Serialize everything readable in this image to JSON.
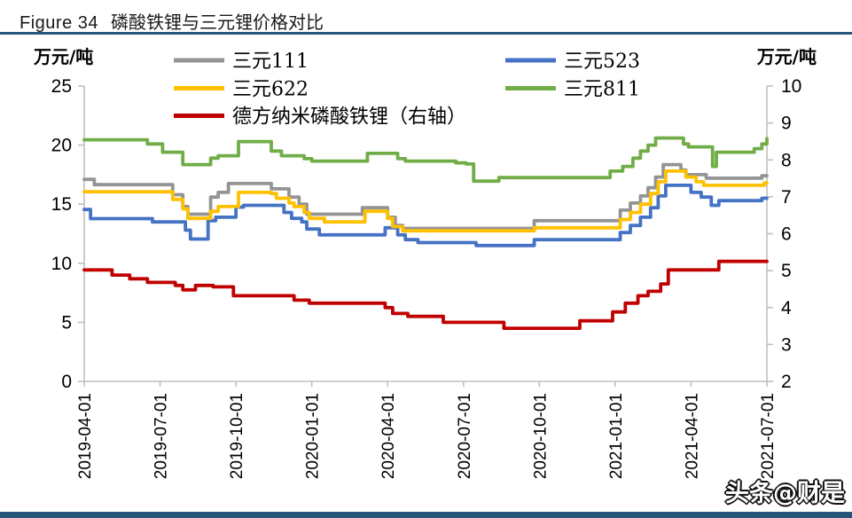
{
  "title": {
    "prefix": "Figure 34",
    "text": "磷酸铁锂与三元锂价格对比"
  },
  "watermark": "头条@财是",
  "colors": {
    "rule_blue": "#25567A",
    "bottom_bar": "#25567A",
    "axis_gray": "#BFBFBF",
    "series_111": "#949494",
    "series_523": "#4472C4",
    "series_622": "#FFC000",
    "series_811": "#70AD47",
    "series_lfp": "#C00000"
  },
  "axes": {
    "left_unit": "万元/吨",
    "right_unit": "万元/吨",
    "left_ticks": [
      "25",
      "20",
      "15",
      "10",
      "5",
      "0"
    ],
    "right_ticks": [
      "10",
      "9",
      "8",
      "7",
      "6",
      "5",
      "4",
      "3",
      "2"
    ],
    "x_labels": [
      "2019-04-01",
      "2019-07-01",
      "2019-10-01",
      "2020-01-01",
      "2020-04-01",
      "2020-07-01",
      "2020-10-01",
      "2021-01-01",
      "2021-04-01",
      "2021-07-01"
    ]
  },
  "legend": {
    "items": [
      {
        "label": "三元111",
        "color_key": "series_111",
        "col": 0,
        "row": 0
      },
      {
        "label": "三元523",
        "color_key": "series_523",
        "col": 1,
        "row": 0
      },
      {
        "label": "三元622",
        "color_key": "series_622",
        "col": 0,
        "row": 1
      },
      {
        "label": "三元811",
        "color_key": "series_811",
        "col": 1,
        "row": 1
      },
      {
        "label": "德方纳米磷酸铁锂（右轴）",
        "color_key": "series_lfp",
        "col": 0,
        "row": 2
      }
    ]
  },
  "chart_data": {
    "type": "line",
    "title": "磷酸铁锂与三元锂价格对比",
    "x_unit": "months since 2019-04-01 (0 → 2019-04-01, 27 → 2021-07-01)",
    "left_axis": {
      "label": "万元/吨",
      "range": [
        0,
        25
      ]
    },
    "right_axis": {
      "label": "万元/吨",
      "range": [
        2,
        10
      ]
    },
    "grid": false,
    "legend_position": "top",
    "series": [
      {
        "name": "三元111",
        "axis": "left",
        "color_key": "series_111",
        "points": [
          [
            0,
            17.1
          ],
          [
            0.4,
            16.65
          ],
          [
            3.1,
            16.65
          ],
          [
            3.5,
            15.8
          ],
          [
            3.9,
            14.8
          ],
          [
            4.1,
            14.15
          ],
          [
            4.8,
            14.15
          ],
          [
            5.0,
            15.6
          ],
          [
            5.3,
            16.0
          ],
          [
            5.7,
            16.75
          ],
          [
            7.0,
            16.75
          ],
          [
            7.4,
            16.3
          ],
          [
            8.1,
            15.6
          ],
          [
            8.5,
            15.0
          ],
          [
            8.8,
            14.15
          ],
          [
            10.8,
            14.15
          ],
          [
            11.0,
            14.7
          ],
          [
            11.8,
            14.7
          ],
          [
            12.0,
            13.9
          ],
          [
            12.3,
            13.2
          ],
          [
            12.6,
            12.95
          ],
          [
            17.6,
            12.95
          ],
          [
            17.8,
            13.6
          ],
          [
            20.7,
            13.6
          ],
          [
            21.2,
            14.5
          ],
          [
            21.6,
            15.1
          ],
          [
            22.0,
            15.7
          ],
          [
            22.3,
            16.4
          ],
          [
            22.6,
            17.3
          ],
          [
            22.9,
            18.35
          ],
          [
            23.4,
            18.35
          ],
          [
            23.6,
            17.9
          ],
          [
            23.8,
            17.5
          ],
          [
            24.3,
            17.5
          ],
          [
            24.6,
            17.2
          ],
          [
            26.5,
            17.2
          ],
          [
            26.8,
            17.4
          ],
          [
            27,
            17.4
          ]
        ]
      },
      {
        "name": "三元523",
        "axis": "left",
        "color_key": "series_523",
        "points": [
          [
            0,
            14.55
          ],
          [
            0.25,
            13.78
          ],
          [
            2.5,
            13.78
          ],
          [
            2.7,
            13.5
          ],
          [
            3.8,
            13.5
          ],
          [
            4.0,
            12.8
          ],
          [
            4.2,
            12.05
          ],
          [
            4.7,
            12.05
          ],
          [
            4.9,
            13.6
          ],
          [
            5.2,
            13.9
          ],
          [
            5.8,
            13.9
          ],
          [
            6.0,
            14.75
          ],
          [
            6.3,
            14.9
          ],
          [
            7.7,
            14.9
          ],
          [
            7.9,
            14.3
          ],
          [
            8.2,
            13.8
          ],
          [
            8.6,
            13.5
          ],
          [
            8.8,
            12.9
          ],
          [
            9.3,
            12.4
          ],
          [
            11.8,
            12.4
          ],
          [
            11.9,
            13.0
          ],
          [
            12.2,
            13.0
          ],
          [
            12.4,
            12.4
          ],
          [
            12.7,
            12.0
          ],
          [
            13.2,
            11.75
          ],
          [
            15.3,
            11.75
          ],
          [
            15.5,
            11.5
          ],
          [
            17.6,
            11.5
          ],
          [
            17.8,
            12.0
          ],
          [
            20.8,
            12.0
          ],
          [
            21.2,
            12.6
          ],
          [
            21.6,
            13.2
          ],
          [
            22.0,
            13.9
          ],
          [
            22.4,
            14.7
          ],
          [
            22.7,
            15.7
          ],
          [
            23.0,
            16.6
          ],
          [
            23.7,
            16.6
          ],
          [
            24.0,
            16.0
          ],
          [
            24.4,
            15.6
          ],
          [
            24.8,
            14.9
          ],
          [
            25.1,
            15.3
          ],
          [
            26.6,
            15.3
          ],
          [
            26.8,
            15.5
          ],
          [
            27,
            15.5
          ]
        ]
      },
      {
        "name": "三元622",
        "axis": "left",
        "color_key": "series_622",
        "points": [
          [
            0,
            16.05
          ],
          [
            3.2,
            16.05
          ],
          [
            3.5,
            15.4
          ],
          [
            3.9,
            14.6
          ],
          [
            4.1,
            13.8
          ],
          [
            4.8,
            13.8
          ],
          [
            5.0,
            14.4
          ],
          [
            5.3,
            14.8
          ],
          [
            5.8,
            14.8
          ],
          [
            6.1,
            16.0
          ],
          [
            7.1,
            16.0
          ],
          [
            7.4,
            15.9
          ],
          [
            7.6,
            15.5
          ],
          [
            8.1,
            15.1
          ],
          [
            8.3,
            14.8
          ],
          [
            8.7,
            14.3
          ],
          [
            8.9,
            13.8
          ],
          [
            9.5,
            13.5
          ],
          [
            10.9,
            13.5
          ],
          [
            11.1,
            14.4
          ],
          [
            11.8,
            14.4
          ],
          [
            12.0,
            13.8
          ],
          [
            12.2,
            13.1
          ],
          [
            12.6,
            12.75
          ],
          [
            17.6,
            12.75
          ],
          [
            17.8,
            13.0
          ],
          [
            20.8,
            13.0
          ],
          [
            21.2,
            13.7
          ],
          [
            21.6,
            14.3
          ],
          [
            22.0,
            15.0
          ],
          [
            22.4,
            15.9
          ],
          [
            22.7,
            16.9
          ],
          [
            23.0,
            17.8
          ],
          [
            23.5,
            17.8
          ],
          [
            23.8,
            17.3
          ],
          [
            24.2,
            16.9
          ],
          [
            24.5,
            16.6
          ],
          [
            26.6,
            16.6
          ],
          [
            26.9,
            16.8
          ],
          [
            27,
            16.8
          ]
        ]
      },
      {
        "name": "三元811",
        "axis": "left",
        "color_key": "series_811",
        "points": [
          [
            0,
            20.45
          ],
          [
            2.3,
            20.45
          ],
          [
            2.5,
            20.1
          ],
          [
            3.1,
            19.4
          ],
          [
            3.9,
            18.35
          ],
          [
            4.8,
            18.35
          ],
          [
            5.0,
            18.9
          ],
          [
            5.3,
            19.1
          ],
          [
            5.9,
            19.1
          ],
          [
            6.1,
            20.3
          ],
          [
            7.2,
            20.3
          ],
          [
            7.4,
            19.5
          ],
          [
            7.8,
            19.1
          ],
          [
            8.5,
            19.1
          ],
          [
            8.7,
            18.85
          ],
          [
            9.0,
            18.65
          ],
          [
            11.0,
            18.65
          ],
          [
            11.2,
            19.3
          ],
          [
            12.2,
            19.3
          ],
          [
            12.4,
            18.85
          ],
          [
            12.7,
            18.65
          ],
          [
            14.4,
            18.65
          ],
          [
            14.7,
            18.5
          ],
          [
            15.1,
            18.4
          ],
          [
            15.4,
            16.95
          ],
          [
            16.2,
            16.95
          ],
          [
            16.4,
            17.25
          ],
          [
            20.5,
            17.25
          ],
          [
            20.8,
            17.8
          ],
          [
            21.3,
            18.2
          ],
          [
            21.7,
            18.9
          ],
          [
            22.0,
            19.5
          ],
          [
            22.3,
            20.0
          ],
          [
            22.6,
            20.6
          ],
          [
            23.5,
            20.6
          ],
          [
            23.7,
            20.1
          ],
          [
            23.9,
            19.85
          ],
          [
            24.7,
            19.85
          ],
          [
            24.85,
            18.2
          ],
          [
            25.0,
            19.4
          ],
          [
            26.2,
            19.4
          ],
          [
            26.5,
            19.7
          ],
          [
            26.8,
            20.1
          ],
          [
            27,
            20.55
          ]
        ]
      },
      {
        "name": "德方纳米磷酸铁锂（右轴）",
        "axis": "right",
        "color_key": "series_lfp",
        "points": [
          [
            0,
            5.02
          ],
          [
            1.1,
            4.88
          ],
          [
            1.8,
            4.78
          ],
          [
            2.5,
            4.68
          ],
          [
            3.6,
            4.6
          ],
          [
            3.9,
            4.48
          ],
          [
            4.2,
            4.48
          ],
          [
            4.4,
            4.6
          ],
          [
            4.9,
            4.6
          ],
          [
            5.1,
            4.56
          ],
          [
            5.7,
            4.56
          ],
          [
            5.9,
            4.32
          ],
          [
            8.1,
            4.32
          ],
          [
            8.3,
            4.2
          ],
          [
            8.7,
            4.2
          ],
          [
            8.9,
            4.12
          ],
          [
            11.7,
            4.12
          ],
          [
            11.9,
            4.0
          ],
          [
            12.2,
            3.84
          ],
          [
            12.8,
            3.76
          ],
          [
            14.0,
            3.76
          ],
          [
            14.2,
            3.6
          ],
          [
            16.4,
            3.6
          ],
          [
            16.6,
            3.44
          ],
          [
            19.4,
            3.44
          ],
          [
            19.6,
            3.64
          ],
          [
            20.6,
            3.64
          ],
          [
            20.9,
            3.88
          ],
          [
            21.4,
            4.12
          ],
          [
            21.9,
            4.32
          ],
          [
            22.3,
            4.44
          ],
          [
            22.8,
            4.64
          ],
          [
            23.1,
            5.02
          ],
          [
            24.9,
            5.02
          ],
          [
            25.1,
            5.25
          ],
          [
            27,
            5.25
          ]
        ]
      }
    ]
  }
}
